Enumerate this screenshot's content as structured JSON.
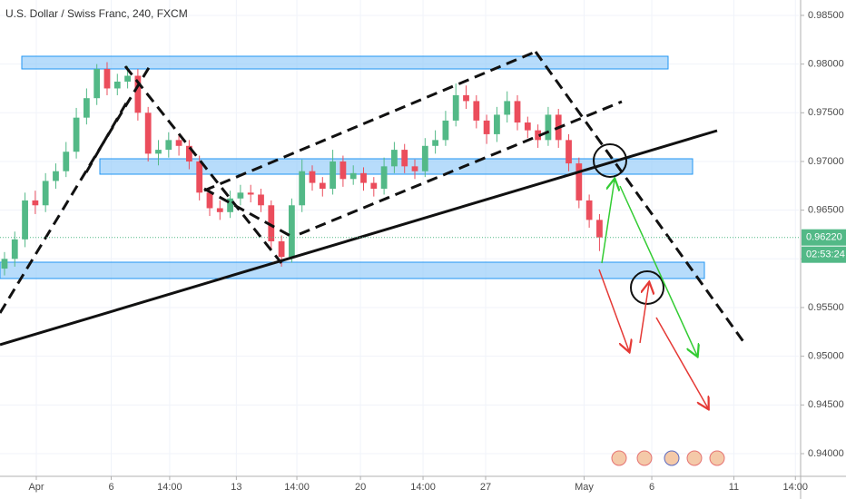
{
  "chart_data": {
    "type": "candlestick",
    "title": "U.S. Dollar / Swiss Franc, 240, FXCM",
    "up_color": "#53b987",
    "down_color": "#eb4d5c",
    "grid": true,
    "xlim": [
      -0.44,
      77.43
    ],
    "ylim": [
      0.93767,
      0.98658
    ],
    "xticks": [
      {
        "value": 3.1,
        "label": "Apr"
      },
      {
        "value": 10.4,
        "label": "6"
      },
      {
        "value": 16.1,
        "label": "14:00"
      },
      {
        "value": 22.6,
        "label": "13"
      },
      {
        "value": 28.5,
        "label": "14:00"
      },
      {
        "value": 34.7,
        "label": "20"
      },
      {
        "value": 40.8,
        "label": "14:00"
      },
      {
        "value": 46.9,
        "label": "27"
      },
      {
        "value": 56.5,
        "label": "May"
      },
      {
        "value": 63.1,
        "label": "6"
      },
      {
        "value": 71.1,
        "label": "11"
      },
      {
        "value": 77.1,
        "label": "14:00"
      }
    ],
    "yticks": [
      {
        "value": 0.94,
        "label": "0.94000"
      },
      {
        "value": 0.945,
        "label": "0.94500"
      },
      {
        "value": 0.95,
        "label": "0.95000"
      },
      {
        "value": 0.955,
        "label": "0.95500"
      },
      {
        "value": 0.96,
        "label": "0.96000"
      },
      {
        "value": 0.965,
        "label": "0.96500"
      },
      {
        "value": 0.97,
        "label": "0.97000"
      },
      {
        "value": 0.975,
        "label": "0.97500"
      },
      {
        "value": 0.98,
        "label": "0.98000"
      },
      {
        "value": 0.985,
        "label": "0.98500"
      }
    ],
    "last_price": {
      "value": 0.9622,
      "label": "0.96220"
    },
    "countdown": "02:53:24",
    "open": [
      0.959,
      0.96,
      0.962,
      0.966,
      0.9655,
      0.968,
      0.969,
      0.971,
      0.9745,
      0.9765,
      0.9795,
      0.9775,
      0.9782,
      0.9788,
      0.975,
      0.9708,
      0.9712,
      0.9722,
      0.9716,
      0.97,
      0.9668,
      0.9652,
      0.9648,
      0.9662,
      0.9668,
      0.9666,
      0.9655,
      0.9618,
      0.9602,
      0.9655,
      0.969,
      0.9678,
      0.9672,
      0.97,
      0.9682,
      0.9688,
      0.9678,
      0.9672,
      0.9695,
      0.9712,
      0.9695,
      0.969,
      0.9716,
      0.9722,
      0.9742,
      0.9768,
      0.9762,
      0.9742,
      0.9728,
      0.9748,
      0.9762,
      0.974,
      0.9732,
      0.9722,
      0.9748,
      0.9722,
      0.9698,
      0.966,
      0.964
    ],
    "high": [
      0.9607,
      0.9628,
      0.9668,
      0.967,
      0.9688,
      0.9698,
      0.972,
      0.9755,
      0.9775,
      0.98,
      0.9802,
      0.979,
      0.9798,
      0.9795,
      0.9756,
      0.9722,
      0.973,
      0.9728,
      0.9722,
      0.9706,
      0.9674,
      0.966,
      0.967,
      0.9676,
      0.9676,
      0.9672,
      0.966,
      0.9624,
      0.9662,
      0.9702,
      0.9696,
      0.9684,
      0.9712,
      0.9706,
      0.9696,
      0.9694,
      0.9684,
      0.9704,
      0.972,
      0.9718,
      0.9702,
      0.9724,
      0.9732,
      0.9752,
      0.978,
      0.9778,
      0.9768,
      0.9748,
      0.9756,
      0.9772,
      0.9768,
      0.9746,
      0.9738,
      0.9756,
      0.9754,
      0.9728,
      0.9704,
      0.9666,
      0.9646
    ],
    "low": [
      0.9583,
      0.9592,
      0.9612,
      0.9646,
      0.9648,
      0.9672,
      0.9684,
      0.9703,
      0.9738,
      0.9758,
      0.9768,
      0.9768,
      0.9775,
      0.9742,
      0.97,
      0.9696,
      0.9704,
      0.9706,
      0.9692,
      0.966,
      0.9644,
      0.964,
      0.9642,
      0.9655,
      0.9658,
      0.9648,
      0.961,
      0.9592,
      0.9596,
      0.9648,
      0.967,
      0.9664,
      0.9666,
      0.9674,
      0.9676,
      0.967,
      0.9664,
      0.9666,
      0.9688,
      0.9688,
      0.9682,
      0.9684,
      0.9708,
      0.9716,
      0.9736,
      0.9754,
      0.9734,
      0.9718,
      0.972,
      0.974,
      0.9732,
      0.9724,
      0.9714,
      0.9716,
      0.9714,
      0.969,
      0.9652,
      0.9632,
      0.9608
    ],
    "close": [
      0.96,
      0.962,
      0.966,
      0.9655,
      0.968,
      0.969,
      0.971,
      0.9745,
      0.9765,
      0.9795,
      0.9775,
      0.9782,
      0.9788,
      0.975,
      0.9708,
      0.9712,
      0.9722,
      0.9716,
      0.97,
      0.9668,
      0.9652,
      0.9648,
      0.9662,
      0.9668,
      0.9666,
      0.9655,
      0.9618,
      0.9602,
      0.9655,
      0.969,
      0.9678,
      0.9672,
      0.97,
      0.9682,
      0.9688,
      0.9678,
      0.9672,
      0.9695,
      0.9712,
      0.9695,
      0.969,
      0.9716,
      0.9722,
      0.9742,
      0.9768,
      0.9762,
      0.9742,
      0.9728,
      0.9748,
      0.9762,
      0.974,
      0.9732,
      0.9722,
      0.9748,
      0.9722,
      0.9698,
      0.966,
      0.964,
      0.9622
    ]
  }
}
